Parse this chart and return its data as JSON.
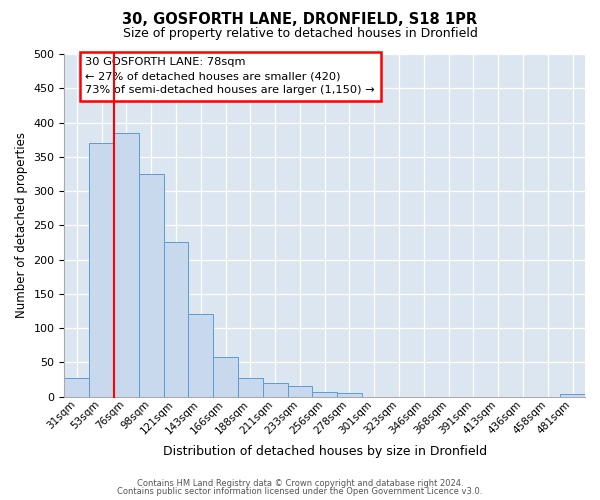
{
  "title": "30, GOSFORTH LANE, DRONFIELD, S18 1PR",
  "subtitle": "Size of property relative to detached houses in Dronfield",
  "xlabel": "Distribution of detached houses by size in Dronfield",
  "ylabel": "Number of detached properties",
  "bin_labels": [
    "31sqm",
    "53sqm",
    "76sqm",
    "98sqm",
    "121sqm",
    "143sqm",
    "166sqm",
    "188sqm",
    "211sqm",
    "233sqm",
    "256sqm",
    "278sqm",
    "301sqm",
    "323sqm",
    "346sqm",
    "368sqm",
    "391sqm",
    "413sqm",
    "436sqm",
    "458sqm",
    "481sqm"
  ],
  "bar_heights": [
    27,
    370,
    385,
    325,
    225,
    120,
    58,
    27,
    20,
    15,
    7,
    5,
    0,
    0,
    0,
    0,
    0,
    0,
    0,
    0,
    3
  ],
  "bar_color": "#c9d9ed",
  "bar_edge_color": "#5b9bd5",
  "red_line_bin": 2,
  "annotation_line1": "30 GOSFORTH LANE: 78sqm",
  "annotation_line2": "← 27% of detached houses are smaller (420)",
  "annotation_line3": "73% of semi-detached houses are larger (1,150) →",
  "ylim": [
    0,
    500
  ],
  "yticks": [
    0,
    50,
    100,
    150,
    200,
    250,
    300,
    350,
    400,
    450,
    500
  ],
  "plot_bg_color": "#dce6f1",
  "footer_line1": "Contains HM Land Registry data © Crown copyright and database right 2024.",
  "footer_line2": "Contains public sector information licensed under the Open Government Licence v3.0."
}
